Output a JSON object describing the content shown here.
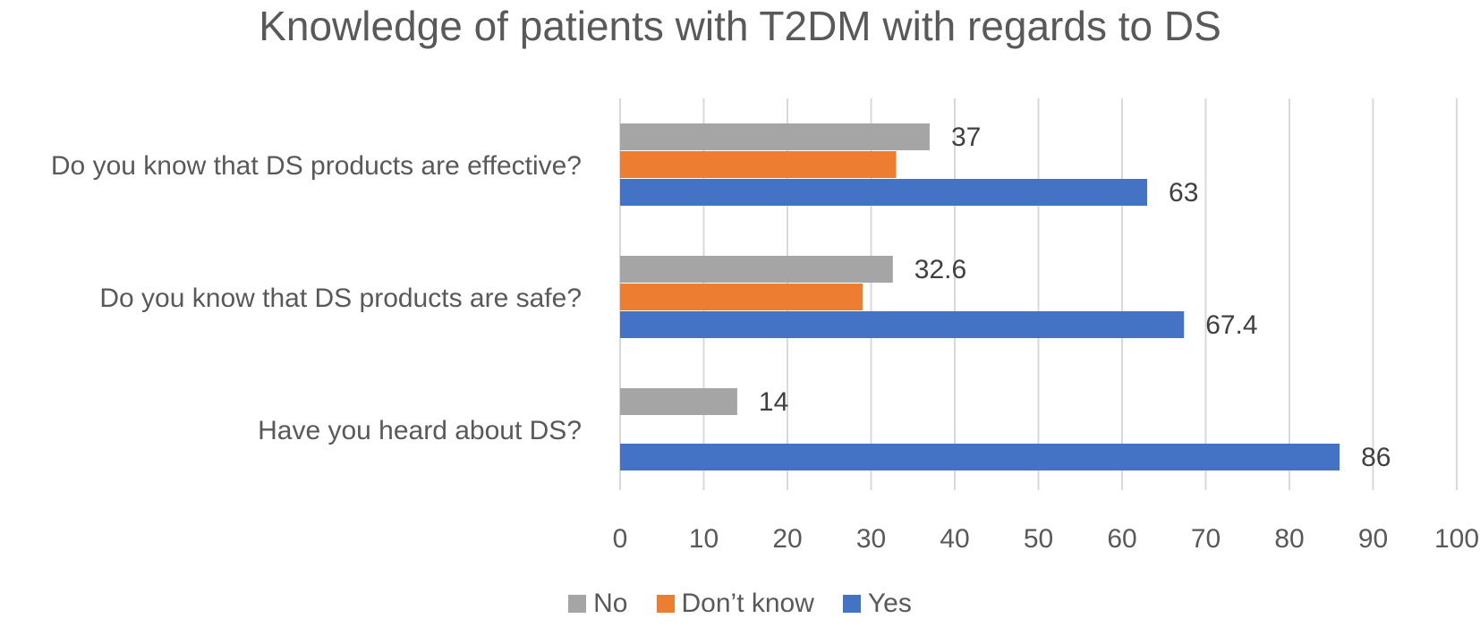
{
  "chart_data": {
    "type": "bar",
    "orientation": "horizontal",
    "title": "Knowledge of patients with T2DM with regards to DS",
    "categories": [
      "Do you know that DS products are effective?",
      "Do you know that DS products are safe?",
      "Have you heard about DS?"
    ],
    "series": [
      {
        "name": "No",
        "color": "#a5a5a5",
        "values": [
          37,
          32.6,
          14
        ],
        "labels": [
          "37",
          "32.6",
          "14"
        ]
      },
      {
        "name": "Don’t know",
        "color": "#ed7d31",
        "values": [
          33,
          29,
          null
        ],
        "labels": [
          null,
          null,
          null
        ]
      },
      {
        "name": "Yes",
        "color": "#4472c4",
        "values": [
          63,
          67.4,
          86
        ],
        "labels": [
          "63",
          "67.4",
          "86"
        ]
      }
    ],
    "xlim": [
      0,
      100
    ],
    "xticks": [
      "0",
      "10",
      "20",
      "30",
      "40",
      "50",
      "60",
      "70",
      "80",
      "90",
      "100"
    ],
    "grid": "vertical",
    "legend_position": "bottom"
  }
}
